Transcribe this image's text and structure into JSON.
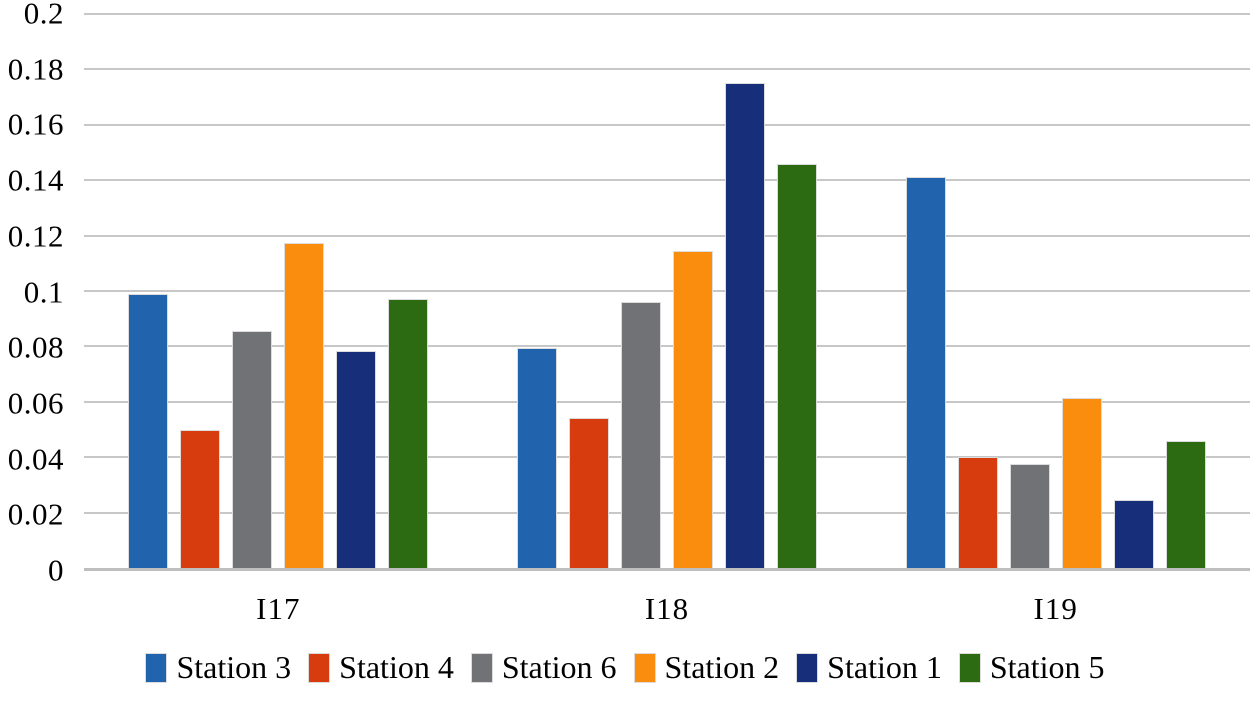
{
  "chart_data": {
    "type": "bar",
    "title": "",
    "categories": [
      "I17",
      "I18",
      "I19"
    ],
    "series": [
      {
        "name": "Station 3",
        "color": "#2263AE",
        "values": [
          0.099,
          0.0795,
          0.141
        ]
      },
      {
        "name": "Station 4",
        "color": "#D63C0D",
        "values": [
          0.05,
          0.054,
          0.04
        ]
      },
      {
        "name": "Station 6",
        "color": "#707275",
        "values": [
          0.0855,
          0.096,
          0.0375
        ]
      },
      {
        "name": "Station 2",
        "color": "#FB8D0E",
        "values": [
          0.1175,
          0.1145,
          0.0615
        ]
      },
      {
        "name": "Station 1",
        "color": "#172F7B",
        "values": [
          0.0785,
          0.175,
          0.0245
        ]
      },
      {
        "name": "Station 5",
        "color": "#2C6B11",
        "values": [
          0.097,
          0.146,
          0.046
        ]
      }
    ],
    "xlabel": "",
    "ylabel": "",
    "ylim": [
      0,
      0.2
    ],
    "ytick_step": 0.02,
    "ytick_labels": [
      "0.2",
      "0.18",
      "0.16",
      "0.14",
      "0.12",
      "0.1",
      "0.08",
      "0.06",
      "0.04",
      "0.02",
      "0"
    ],
    "grid": true,
    "legend_position": "bottom"
  },
  "colors": {
    "gridline": "#C7C7C7",
    "axis_line": "#BEBEBE",
    "bar_outline": "#DCDCDC",
    "text": "#000000",
    "background": "#FFFFFF"
  }
}
